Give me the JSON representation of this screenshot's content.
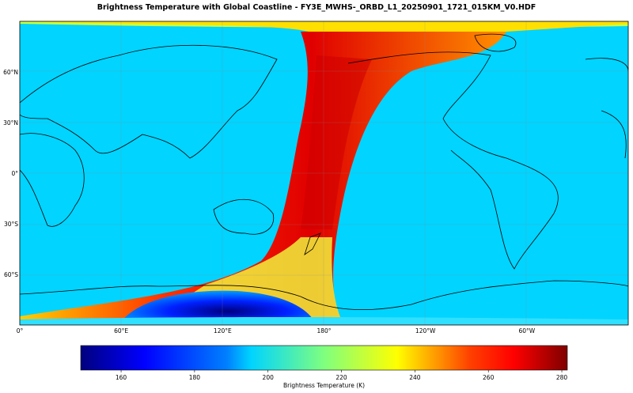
{
  "title": "Brightness Temperature with Global Coastline - FY3E_MWHS-_ORBD_L1_20250901_1721_015KM_V0.HDF",
  "chart_data": {
    "type": "heatmap",
    "subtype": "map",
    "title": "Brightness Temperature with Global Coastline - FY3E_MWHS-_ORBD_L1_20250901_1721_015KM_V0.HDF",
    "projection": "plate carree, centered at 180°",
    "background_color": "#00d4ff",
    "colormap": "jet",
    "x_ticks": [
      {
        "lon": 0,
        "label": "0°"
      },
      {
        "lon": 60,
        "label": "60°E"
      },
      {
        "lon": 120,
        "label": "120°E"
      },
      {
        "lon": 180,
        "label": "180°"
      },
      {
        "lon": 240,
        "label": "120°W"
      },
      {
        "lon": 300,
        "label": "60°W"
      }
    ],
    "y_ticks": [
      {
        "lat": 60,
        "label": "60°N"
      },
      {
        "lat": 30,
        "label": "30°N"
      },
      {
        "lat": 0,
        "label": "0°"
      },
      {
        "lat": -30,
        "label": "30°S"
      },
      {
        "lat": -60,
        "label": "60°S"
      }
    ],
    "xlim": [
      0,
      360
    ],
    "ylim": [
      -90,
      90
    ],
    "grid": true,
    "colorbar": {
      "label": "Brightness Temperature (K)",
      "range": [
        149,
        281.5
      ],
      "ticks": [
        "160",
        "180",
        "200",
        "220",
        "240",
        "260",
        "280"
      ],
      "placement": "bottom"
    }
  }
}
